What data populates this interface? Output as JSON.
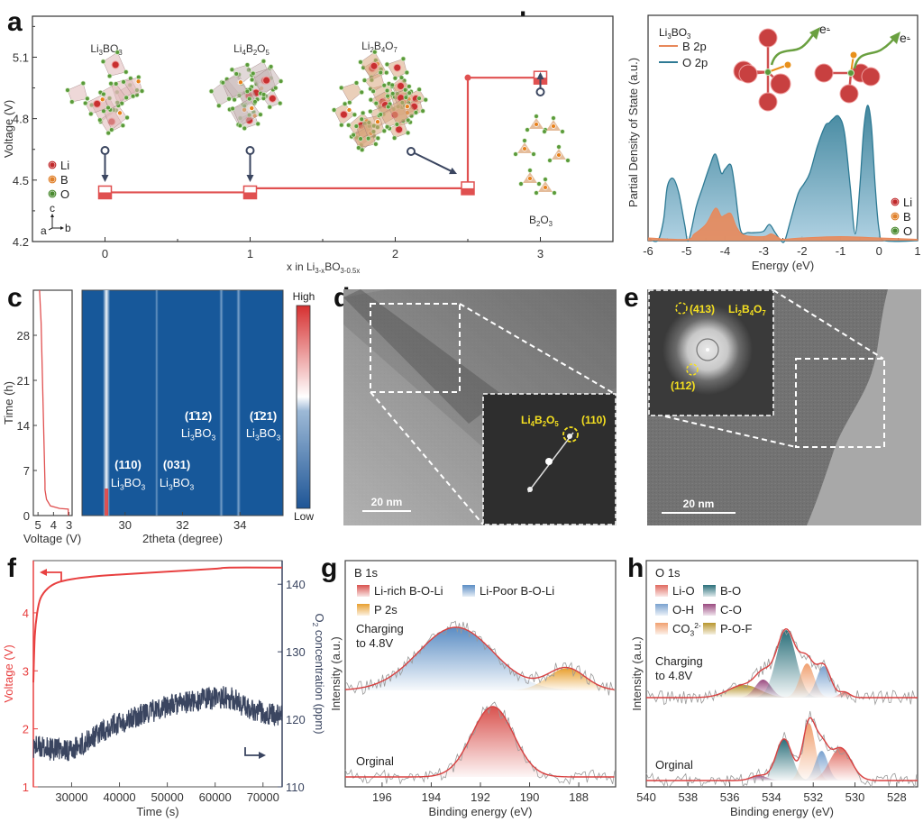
{
  "figure": {
    "panel_labels": [
      "a",
      "b",
      "c",
      "d",
      "e",
      "f",
      "g",
      "h"
    ]
  },
  "chart_data": [
    {
      "panel": "a",
      "type": "line",
      "title": "",
      "xlabel": "x in Li3-xBO3-0.5x",
      "xlabel_parts": {
        "base": "x in Li",
        "sub1": "3-x",
        "mid": "BO",
        "sub2": "3-0.5x"
      },
      "ylabel": "Voltage (V)",
      "xlim": [
        -0.5,
        3.5
      ],
      "ylim": [
        4.2,
        5.3
      ],
      "xticks": [
        0,
        1,
        2,
        3
      ],
      "yticks": [
        4.2,
        4.5,
        4.8,
        5.1
      ],
      "series": [
        {
          "name": "voltage-profile",
          "color": "#e05050",
          "x": [
            0,
            1,
            1,
            2.5,
            2.5,
            3
          ],
          "y": [
            4.44,
            4.44,
            4.46,
            4.46,
            5.0,
            5.0
          ]
        }
      ],
      "markers": [
        {
          "x": 0,
          "y": 4.44,
          "fill_fraction": 0.5
        },
        {
          "x": 1,
          "y": 4.44,
          "fill_fraction": 0.5
        },
        {
          "x": 2.5,
          "y": 4.46,
          "fill_fraction": 0.5
        },
        {
          "x": 3,
          "y": 5.0,
          "fill_fraction": 0.5
        }
      ],
      "structures": [
        {
          "name": "Li3BO3",
          "base": "Li",
          "s1": "3",
          "mid": "BO",
          "s2": "3",
          "x": 0
        },
        {
          "name": "Li4B2O5",
          "base": "Li",
          "s1": "4",
          "mid": "B",
          "s2": "2",
          "tail": "O",
          "s3": "5",
          "x": 1
        },
        {
          "name": "Li2B4O7",
          "base": "Li",
          "s1": "2",
          "mid": "B",
          "s2": "4",
          "tail": "O",
          "s3": "7",
          "x": 2
        },
        {
          "name": "B2O3",
          "base": "B",
          "s1": "2",
          "mid": "O",
          "s2": "3",
          "x": 3
        }
      ],
      "legend": [
        {
          "label": "Li",
          "color": "#c0282a"
        },
        {
          "label": "B",
          "color": "#e0802a"
        },
        {
          "label": "O",
          "color": "#4a8a30"
        }
      ],
      "axes_indicator": {
        "c": "c",
        "a": "a",
        "b": "b"
      }
    },
    {
      "panel": "b",
      "type": "area",
      "title": "Li3BO3",
      "xlabel": "Energy (eV)",
      "ylabel": "Partial Density of State (a.u.)",
      "xlim": [
        -6,
        1
      ],
      "xticks": [
        -6,
        -5,
        -4,
        -3,
        -2,
        -1,
        0,
        1
      ],
      "series": [
        {
          "name": "B 2p",
          "color": "#e8885a",
          "x": [
            -6,
            -5.0,
            -4.8,
            -4.5,
            -4.25,
            -4.1,
            -4.0,
            -3.85,
            -3.7,
            -3.5,
            -3.0,
            -2.8,
            -2.6,
            -2.5,
            -2.0,
            -1.0,
            0,
            1
          ],
          "y": [
            0.02,
            0.01,
            0.05,
            0.12,
            0.24,
            0.18,
            0.19,
            0.2,
            0.1,
            0.04,
            0.03,
            0.05,
            0.02,
            0.01,
            0.02,
            0.03,
            0.02,
            0.01
          ]
        },
        {
          "name": "O 2p",
          "color": "#2e7a94",
          "x": [
            -6,
            -5.75,
            -5.6,
            -5.5,
            -5.35,
            -5.2,
            -5.05,
            -4.95,
            -4.75,
            -4.6,
            -4.4,
            -4.25,
            -4.1,
            -4.0,
            -3.85,
            -3.75,
            -3.6,
            -3.4,
            -3.2,
            -3.0,
            -2.85,
            -2.7,
            -2.55,
            -2.45,
            -2.3,
            -2.1,
            -1.95,
            -1.8,
            -1.6,
            -1.4,
            -1.3,
            -1.2,
            -1.05,
            -0.9,
            -0.75,
            -0.62,
            -0.5,
            -0.4,
            -0.3,
            -0.2,
            -0.1,
            0.0,
            0.15,
            1.0
          ],
          "y": [
            0.02,
            0.0,
            0.15,
            0.4,
            0.46,
            0.35,
            0.12,
            0.0,
            0.25,
            0.38,
            0.55,
            0.64,
            0.5,
            0.53,
            0.56,
            0.4,
            0.08,
            0.06,
            0.06,
            0.07,
            0.12,
            0.06,
            0.0,
            0.0,
            0.15,
            0.35,
            0.42,
            0.5,
            0.7,
            0.85,
            0.87,
            0.9,
            0.92,
            0.8,
            0.4,
            0.05,
            0.4,
            0.82,
            1.0,
            0.85,
            0.4,
            0.08,
            0.0,
            0.0
          ]
        }
      ],
      "legend": [
        {
          "label": "B 2p",
          "color": "#e8885a"
        },
        {
          "label": "O 2p",
          "color": "#2e7a94"
        }
      ],
      "atom_legend": [
        {
          "label": "Li",
          "color": "#c0282a"
        },
        {
          "label": "B",
          "color": "#e0802a"
        },
        {
          "label": "O",
          "color": "#4a8a30"
        }
      ],
      "annotations": [
        "e-",
        "e-"
      ]
    },
    {
      "panel": "c-left",
      "type": "line",
      "xlabel": "Voltage (V)",
      "ylabel": "Time (h)",
      "xlim": [
        5.3,
        2.8
      ],
      "ylim": [
        0,
        35
      ],
      "xticks": [
        5,
        4,
        3
      ],
      "yticks": [
        0,
        7,
        14,
        21,
        28
      ],
      "series": [
        {
          "name": "voltage",
          "color": "#e05050",
          "x": [
            3.05,
            3.05,
            3.6,
            4.2,
            4.45,
            4.55,
            4.55,
            4.6,
            4.7,
            4.8,
            4.9
          ],
          "y": [
            0,
            1.0,
            1.1,
            1.5,
            2.5,
            4.0,
            5.0,
            10,
            20,
            30,
            35
          ]
        }
      ]
    },
    {
      "panel": "c-right",
      "type": "heatmap",
      "xlabel": "2theta (degree)",
      "xlim": [
        28.5,
        35.5
      ],
      "ylim": [
        0,
        35
      ],
      "xticks": [
        30,
        32,
        34
      ],
      "peaks": [
        {
          "pos": 29.35,
          "intensity": 1.0,
          "label": "(110)",
          "phase": "Li3BO3"
        },
        {
          "pos": 31.1,
          "intensity": 0.25,
          "label": "(031)",
          "phase": "Li3BO3"
        },
        {
          "pos": 33.35,
          "intensity": 0.4,
          "label": "(1̄12)",
          "phase": "Li3BO3"
        },
        {
          "pos": 33.95,
          "intensity": 0.45,
          "label": "(1̄21)",
          "phase": "Li3BO3"
        }
      ],
      "colorbar": {
        "high": "High",
        "low": "Low",
        "colors": [
          "#1e5596",
          "#ffffff",
          "#d63030"
        ]
      }
    },
    {
      "panel": "f",
      "type": "line",
      "xlabel": "Time (s)",
      "ylabel_left": "Voltage (V)",
      "ylabel_right": "O2 concentration (ppm)",
      "xlim": [
        22000,
        74000
      ],
      "ylim_left": [
        1,
        4.9
      ],
      "ylim_right": [
        110,
        143.5
      ],
      "xticks": [
        30000,
        40000,
        50000,
        60000,
        70000
      ],
      "yticks_left": [
        1,
        2,
        3,
        4
      ],
      "yticks_right": [
        110,
        120,
        130,
        140
      ],
      "series": [
        {
          "name": "Voltage",
          "axis": "left",
          "color": "#e84040",
          "x": [
            22000,
            22300,
            22800,
            23500,
            25000,
            27000,
            30000,
            35000,
            40000,
            50000,
            60000,
            63000,
            74000
          ],
          "y": [
            2.8,
            3.6,
            4.0,
            4.25,
            4.42,
            4.52,
            4.58,
            4.63,
            4.66,
            4.71,
            4.76,
            4.78,
            4.78
          ]
        },
        {
          "name": "O2 concentration",
          "axis": "right",
          "color": "#3a4560",
          "x": [
            22000,
            26000,
            30000,
            34000,
            38000,
            42000,
            46000,
            50000,
            54000,
            58000,
            62000,
            64000,
            66000,
            70000,
            74000
          ],
          "y": [
            116,
            115.5,
            115.5,
            117,
            119,
            120,
            121,
            122,
            122.5,
            123,
            123.3,
            123,
            122,
            121,
            120.5
          ]
        }
      ]
    },
    {
      "panel": "g",
      "type": "area",
      "title": "B 1s",
      "xlabel": "Binding energy (eV)",
      "ylabel": "Intensity (a.u.)",
      "xlim": [
        197.5,
        186.5
      ],
      "xticks": [
        196,
        194,
        192,
        190,
        188
      ],
      "legend": [
        {
          "label": "Li-rich B-O-Li",
          "color": "#d9534f"
        },
        {
          "label": "Li-Poor B-O-Li",
          "color": "#5b8dc4"
        },
        {
          "label": "P 2s",
          "color": "#e8a030"
        }
      ],
      "spectra": [
        {
          "name": "Charging to 4.8V",
          "label_lines": [
            "Charging",
            "to 4.8V"
          ],
          "components": [
            {
              "name": "Li-Poor B-O-Li",
              "center": 193.0,
              "fwhm": 3.6,
              "height": 1.0,
              "color": "#5b8dc4"
            },
            {
              "name": "P 2s",
              "center": 188.5,
              "fwhm": 1.8,
              "height": 0.35,
              "color": "#e8a030"
            }
          ]
        },
        {
          "name": "Orginal",
          "label_lines": [
            "Orginal"
          ],
          "components": [
            {
              "name": "Li-rich B-O-Li",
              "center": 191.5,
              "fwhm": 2.0,
              "height": 1.0,
              "color": "#d9534f"
            }
          ]
        }
      ]
    },
    {
      "panel": "h",
      "type": "area",
      "title": "O 1s",
      "xlabel": "Binding energy (eV)",
      "ylabel": "Intensity (a.u.)",
      "xlim": [
        540,
        527
      ],
      "xticks": [
        540,
        538,
        536,
        534,
        532,
        530,
        528
      ],
      "legend": [
        {
          "label": "Li-O",
          "color": "#e06a60"
        },
        {
          "label": "B-O",
          "color": "#2a6f7a"
        },
        {
          "label": "O-H",
          "color": "#7aa2cf"
        },
        {
          "label": "C-O",
          "color": "#9a4a80"
        },
        {
          "label": "CO3 2-",
          "base": "CO",
          "sub": "3",
          "sup": "2-",
          "color": "#f0a070"
        },
        {
          "label": "P-O-F",
          "color": "#b8962e"
        }
      ],
      "spectra": [
        {
          "name": "Charging to 4.8V",
          "label_lines": [
            "Charging",
            "to 4.8V"
          ],
          "components": [
            {
              "name": "P-O-F",
              "center": 535.3,
              "fwhm": 1.8,
              "height": 0.14,
              "color": "#b8962e"
            },
            {
              "name": "C-O",
              "center": 534.4,
              "fwhm": 0.9,
              "height": 0.2,
              "color": "#9a4a80"
            },
            {
              "name": "B-O",
              "center": 533.3,
              "fwhm": 1.1,
              "height": 0.75,
              "color": "#2a6f7a"
            },
            {
              "name": "CO3 2-",
              "center": 532.3,
              "fwhm": 0.8,
              "height": 0.38,
              "color": "#f0a070"
            },
            {
              "name": "O-H",
              "center": 531.5,
              "fwhm": 0.8,
              "height": 0.35,
              "color": "#7aa2cf"
            },
            {
              "name": "Li-O",
              "center": 530.5,
              "fwhm": 0.6,
              "height": 0.06,
              "color": "#e06a60"
            }
          ]
        },
        {
          "name": "Orginal",
          "label_lines": [
            "Orginal"
          ],
          "components": [
            {
              "name": "C-O",
              "center": 534.6,
              "fwhm": 0.9,
              "height": 0.05,
              "color": "#9a4a80"
            },
            {
              "name": "B-O",
              "center": 533.4,
              "fwhm": 0.9,
              "height": 0.42,
              "color": "#2a6f7a"
            },
            {
              "name": "CO3 2-",
              "center": 532.2,
              "fwhm": 0.7,
              "height": 0.58,
              "color": "#f0a070"
            },
            {
              "name": "O-H",
              "center": 531.6,
              "fwhm": 0.7,
              "height": 0.3,
              "color": "#7aa2cf"
            },
            {
              "name": "Li-O",
              "center": 530.7,
              "fwhm": 1.2,
              "height": 0.33,
              "color": "#e06a60"
            }
          ]
        }
      ]
    }
  ],
  "images": {
    "d": {
      "scale_bar": "20 nm",
      "fft_label": {
        "base": "Li",
        "s1": "4",
        "mid": "B",
        "s2": "2",
        "tail": "O",
        "s3": "5",
        "hkl": "(110)"
      }
    },
    "e": {
      "scale_bar": "20 nm",
      "fft_label": {
        "base": "Li",
        "s1": "2",
        "mid": "B",
        "s2": "4",
        "tail": "O",
        "s3": "7"
      },
      "spots": [
        "(413)",
        "(112)"
      ]
    }
  }
}
